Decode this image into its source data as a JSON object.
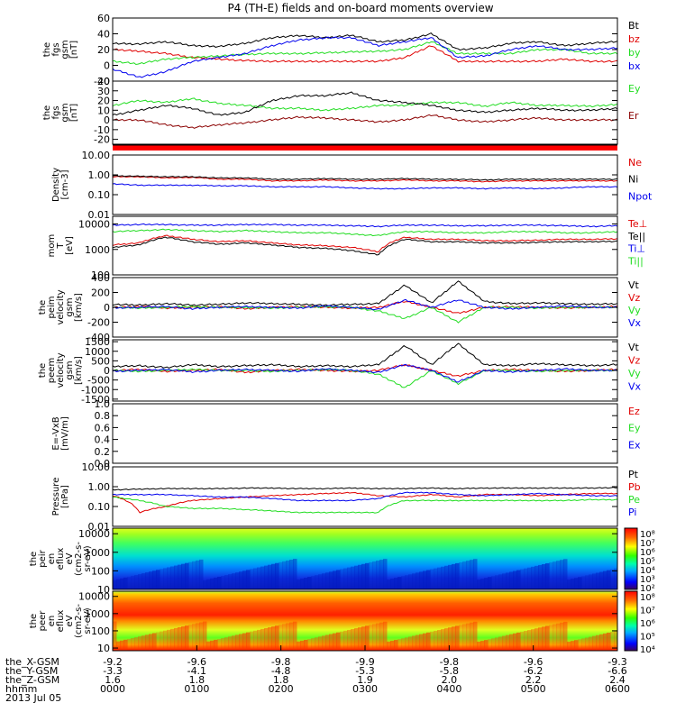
{
  "title": "P4 (TH-E) fields and on-board moments overview",
  "date_label": "2013 Jul 05",
  "colors": {
    "black": "#000000",
    "red": "#e00000",
    "green": "#22dd22",
    "blue": "#0000ee",
    "darkred": "#8b0000",
    "white": "#ffffff"
  },
  "x_axis": {
    "time_ticks": [
      "0000",
      "0100",
      "0200",
      "0300",
      "0400",
      "0500",
      "0600"
    ],
    "rows": [
      {
        "label": "the_X-GSM",
        "values": [
          "-9.2",
          "-9.6",
          "-9.8",
          "-9.9",
          "-9.8",
          "-9.6",
          "-9.3"
        ]
      },
      {
        "label": "the_Y-GSM",
        "values": [
          "-3.3",
          "-4.1",
          "-4.8",
          "-5.3",
          "-5.8",
          "-6.2",
          "-6.6"
        ]
      },
      {
        "label": "the_Z-GSM",
        "values": [
          "1.6",
          "1.8",
          "1.8",
          "1.9",
          "2.0",
          "2.2",
          "2.4"
        ]
      },
      {
        "label": "hhmm",
        "values": [
          "0000",
          "0100",
          "0200",
          "0300",
          "0400",
          "0500",
          "0600"
        ]
      }
    ]
  },
  "chart_data": [
    {
      "type": "line",
      "ylabel": [
        "the",
        "fgs",
        "gsm",
        "[nT]"
      ],
      "scale": "linear",
      "ylim": [
        -20,
        60
      ],
      "yticks": [
        "60",
        "40",
        "20",
        "0",
        "-20"
      ],
      "series": [
        {
          "name": "Bt",
          "color": "black",
          "values": [
            28,
            27,
            30,
            25,
            24,
            28,
            35,
            38,
            35,
            38,
            30,
            32,
            40,
            20,
            22,
            28,
            30,
            25,
            28,
            30
          ]
        },
        {
          "name": "bz",
          "color": "red",
          "values": [
            20,
            18,
            15,
            10,
            8,
            6,
            5,
            5,
            5,
            5,
            5,
            10,
            25,
            5,
            5,
            5,
            5,
            8,
            5,
            5
          ]
        },
        {
          "name": "by",
          "color": "green",
          "values": [
            5,
            2,
            8,
            10,
            12,
            14,
            15,
            15,
            16,
            17,
            18,
            20,
            30,
            15,
            15,
            15,
            20,
            20,
            15,
            15
          ]
        },
        {
          "name": "bx",
          "color": "blue",
          "values": [
            -5,
            -15,
            -8,
            5,
            10,
            15,
            25,
            32,
            35,
            35,
            25,
            30,
            35,
            10,
            12,
            20,
            25,
            20,
            20,
            22
          ]
        }
      ]
    },
    {
      "type": "line",
      "ylabel": [
        "the",
        "fgs",
        "gsm",
        "[nT]"
      ],
      "scale": "linear",
      "ylim": [
        -25,
        40
      ],
      "yticks": [
        "40",
        "30",
        "20",
        "10",
        "0",
        "-10",
        "-20"
      ],
      "series": [
        {
          "name": "Ey",
          "color": "green",
          "values": [
            15,
            20,
            18,
            22,
            17,
            15,
            12,
            12,
            10,
            12,
            15,
            15,
            18,
            18,
            14,
            18,
            15,
            15,
            14,
            16
          ]
        },
        {
          "name": "Er",
          "color": "darkred",
          "values": [
            0,
            0,
            -5,
            -8,
            -5,
            -3,
            0,
            3,
            2,
            0,
            -2,
            0,
            5,
            0,
            -2,
            0,
            2,
            0,
            0,
            0
          ]
        },
        {
          "name": "",
          "color": "black",
          "values": [
            5,
            10,
            15,
            12,
            5,
            8,
            20,
            25,
            25,
            28,
            20,
            18,
            15,
            10,
            8,
            10,
            12,
            10,
            10,
            12
          ]
        }
      ]
    },
    {
      "type": "line",
      "ylabel": [
        "Density",
        "[cm-3]"
      ],
      "scale": "log",
      "ylim": [
        0.01,
        10
      ],
      "yticks": [
        "10.00",
        "1.00",
        "0.10",
        "0.01"
      ],
      "series": [
        {
          "name": "Ne",
          "color": "red",
          "values": [
            0.8,
            0.8,
            0.7,
            0.75,
            0.6,
            0.6,
            0.5,
            0.5,
            0.55,
            0.5,
            0.5,
            0.55,
            0.5,
            0.5,
            0.45,
            0.5,
            0.5,
            0.5,
            0.5,
            0.5
          ]
        },
        {
          "name": "Ni",
          "color": "black",
          "values": [
            0.9,
            0.85,
            0.8,
            0.8,
            0.7,
            0.7,
            0.6,
            0.6,
            0.65,
            0.6,
            0.6,
            0.65,
            0.6,
            0.6,
            0.55,
            0.6,
            0.6,
            0.6,
            0.6,
            0.6
          ]
        },
        {
          "name": "Npot",
          "color": "blue",
          "values": [
            0.35,
            0.3,
            0.3,
            0.3,
            0.28,
            0.28,
            0.25,
            0.25,
            0.25,
            0.22,
            0.2,
            0.2,
            0.22,
            0.22,
            0.2,
            0.22,
            0.2,
            0.22,
            0.25,
            0.25
          ]
        }
      ]
    },
    {
      "type": "line",
      "ylabel": [
        "mom",
        "T",
        "[eV]"
      ],
      "scale": "log",
      "ylim": [
        100,
        20000
      ],
      "yticks": [
        "10000",
        "1000",
        "100"
      ],
      "series": [
        {
          "name": "Te⊥",
          "color": "red",
          "values": [
            1500,
            1800,
            3500,
            2500,
            2000,
            2200,
            1800,
            1500,
            1400,
            1200,
            800,
            3000,
            2500,
            2500,
            2200,
            2200,
            2300,
            2500,
            2500,
            2600
          ]
        },
        {
          "name": "Te||",
          "color": "black",
          "values": [
            1200,
            1500,
            3000,
            2000,
            1600,
            1800,
            1500,
            1200,
            1100,
            900,
            600,
            2500,
            2000,
            2000,
            1800,
            1800,
            1900,
            2000,
            2000,
            2100
          ]
        },
        {
          "name": "Ti⊥",
          "color": "blue",
          "values": [
            9000,
            9500,
            9500,
            9000,
            9000,
            9500,
            9500,
            9000,
            9000,
            8500,
            8000,
            9000,
            9000,
            8500,
            8500,
            9000,
            9000,
            8500,
            8000,
            8500
          ]
        },
        {
          "name": "Ti||",
          "color": "green",
          "values": [
            5000,
            5500,
            6000,
            5500,
            5000,
            5500,
            5000,
            4500,
            4500,
            4000,
            3500,
            5000,
            5000,
            4500,
            4500,
            5000,
            5000,
            4500,
            4500,
            5000
          ]
        }
      ]
    },
    {
      "type": "line",
      "ylabel": [
        "the",
        "peim",
        "velocity",
        "gsm",
        "[km/s]"
      ],
      "scale": "linear",
      "ylim": [
        -400,
        400
      ],
      "yticks": [
        "400",
        "200",
        "0",
        "-200",
        "-400"
      ],
      "series": [
        {
          "name": "Vt",
          "color": "black",
          "values": [
            40,
            30,
            50,
            30,
            40,
            60,
            50,
            40,
            30,
            40,
            50,
            300,
            60,
            350,
            80,
            50,
            60,
            50,
            40,
            50
          ]
        },
        {
          "name": "Vz",
          "color": "red",
          "values": [
            0,
            10,
            -10,
            0,
            10,
            -20,
            0,
            10,
            0,
            -10,
            0,
            80,
            0,
            -80,
            0,
            10,
            0,
            -10,
            0,
            10
          ]
        },
        {
          "name": "Vy",
          "color": "green",
          "values": [
            0,
            -10,
            0,
            10,
            0,
            0,
            -10,
            0,
            10,
            0,
            -50,
            -150,
            0,
            -200,
            0,
            0,
            -10,
            0,
            0,
            0
          ]
        },
        {
          "name": "Vx",
          "color": "blue",
          "values": [
            -10,
            0,
            10,
            -20,
            0,
            10,
            0,
            -10,
            20,
            0,
            -30,
            100,
            0,
            100,
            0,
            -20,
            0,
            20,
            0,
            0
          ]
        }
      ]
    },
    {
      "type": "line",
      "ylabel": [
        "the",
        "peem",
        "velocity",
        "gsm",
        "[km/s]"
      ],
      "scale": "linear",
      "ylim": [
        -1600,
        1600
      ],
      "yticks": [
        "1500",
        "1000",
        "500",
        "0",
        "-500",
        "-1000",
        "-1500"
      ],
      "series": [
        {
          "name": "Vt",
          "color": "black",
          "values": [
            200,
            250,
            150,
            300,
            200,
            250,
            300,
            200,
            250,
            200,
            300,
            1300,
            300,
            1400,
            300,
            250,
            350,
            300,
            250,
            300
          ]
        },
        {
          "name": "Vz",
          "color": "red",
          "values": [
            0,
            50,
            -50,
            0,
            50,
            -100,
            0,
            50,
            0,
            -50,
            0,
            300,
            0,
            -300,
            0,
            50,
            0,
            -50,
            0,
            50
          ]
        },
        {
          "name": "Vy",
          "color": "green",
          "values": [
            0,
            -50,
            0,
            50,
            0,
            0,
            -50,
            0,
            50,
            0,
            -200,
            -900,
            0,
            -700,
            0,
            0,
            -50,
            0,
            0,
            0
          ]
        },
        {
          "name": "Vx",
          "color": "blue",
          "values": [
            -50,
            0,
            50,
            -80,
            0,
            50,
            0,
            -50,
            80,
            0,
            -100,
            300,
            0,
            -600,
            0,
            -80,
            0,
            80,
            0,
            0
          ]
        }
      ]
    },
    {
      "type": "line",
      "ylabel": [
        "E=-VxB",
        "[mV/m]"
      ],
      "scale": "linear",
      "ylim": [
        0,
        1
      ],
      "yticks": [
        "1.0",
        "0.8",
        "0.6",
        "0.4",
        "0.2",
        "0.0"
      ],
      "series": [
        {
          "name": "Ez",
          "color": "red",
          "values": []
        },
        {
          "name": "Ey",
          "color": "green",
          "values": []
        },
        {
          "name": "Ex",
          "color": "blue",
          "values": []
        }
      ]
    },
    {
      "type": "line",
      "ylabel": [
        "Pressure",
        "[nPa]"
      ],
      "scale": "log",
      "ylim": [
        0.01,
        10
      ],
      "yticks": [
        "10.00",
        "1.00",
        "0.10",
        "0.01"
      ],
      "series": [
        {
          "name": "Pt",
          "color": "black",
          "values": [
            0.7,
            0.75,
            0.8,
            0.8,
            0.8,
            0.85,
            0.85,
            0.8,
            0.8,
            0.85,
            0.8,
            0.8,
            0.85,
            0.8,
            0.85,
            0.85,
            0.85,
            0.85,
            0.85,
            0.9
          ]
        },
        {
          "name": "Pb",
          "color": "red",
          "values": [
            0.35,
            0.05,
            0.1,
            0.2,
            0.25,
            0.3,
            0.35,
            0.4,
            0.45,
            0.5,
            0.35,
            0.3,
            0.4,
            0.3,
            0.4,
            0.4,
            0.35,
            0.4,
            0.45,
            0.45
          ]
        },
        {
          "name": "Pe",
          "color": "green",
          "values": [
            0.3,
            0.2,
            0.1,
            0.08,
            0.08,
            0.07,
            0.06,
            0.05,
            0.05,
            0.05,
            0.05,
            0.2,
            0.2,
            0.2,
            0.2,
            0.2,
            0.2,
            0.2,
            0.22,
            0.22
          ]
        },
        {
          "name": "Pi",
          "color": "blue",
          "values": [
            0.4,
            0.4,
            0.4,
            0.35,
            0.3,
            0.3,
            0.25,
            0.2,
            0.2,
            0.2,
            0.25,
            0.5,
            0.5,
            0.4,
            0.35,
            0.4,
            0.45,
            0.4,
            0.35,
            0.35
          ]
        }
      ]
    },
    {
      "type": "heatmap",
      "ylabel": [
        "the",
        "peir",
        "en",
        "eflux",
        "eV",
        "(cm2-s-",
        "sr-eV)"
      ],
      "scale": "log",
      "ylim": [
        10,
        20000
      ],
      "yticks": [
        "10000",
        "1000",
        "100",
        "10"
      ],
      "colorbar": {
        "ticks": [
          "10⁸",
          "10⁷",
          "10⁶",
          "10⁵",
          "10⁴",
          "10³",
          "10²"
        ]
      }
    },
    {
      "type": "heatmap",
      "ylabel": [
        "the",
        "peer",
        "en",
        "eflux",
        "eV",
        "(cm2-s-",
        "sr-eV)"
      ],
      "scale": "log",
      "ylim": [
        7,
        20000
      ],
      "yticks": [
        "10000",
        "1000",
        "100",
        "10"
      ],
      "colorbar": {
        "ticks": [
          "10⁸",
          "10⁷",
          "10⁶",
          "10⁵",
          "10⁴"
        ]
      }
    }
  ]
}
